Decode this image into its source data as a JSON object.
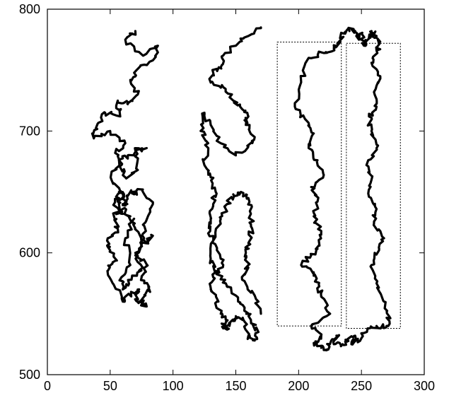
{
  "chart_data": {
    "type": "line",
    "title": "",
    "xlabel": "",
    "ylabel": "",
    "xlim": [
      0,
      300
    ],
    "ylim": [
      500,
      800
    ],
    "xticks": [
      0,
      50,
      100,
      150,
      200,
      250,
      300
    ],
    "yticks": [
      500,
      600,
      700,
      800
    ],
    "xtick_labels": [
      "0",
      "50",
      "100",
      "150",
      "200",
      "250",
      "300"
    ],
    "ytick_labels": [
      "500",
      "600",
      "700",
      "800"
    ],
    "grid": false,
    "legend": "none",
    "series": [
      {
        "x": [
          70,
          62,
          76,
          88,
          84,
          71,
          66,
          72,
          64,
          56,
          58,
          46,
          40,
          37,
          50,
          62,
          54,
          59,
          62,
          72,
          70,
          79,
          64,
          57,
          51,
          58,
          53,
          60,
          56,
          61,
          57,
          63,
          60,
          66,
          69,
          76,
          84,
          78,
          77,
          70,
          79,
          75,
          81,
          78,
          74,
          79,
          73,
          70,
          73,
          62,
          60,
          52,
          48,
          55,
          50,
          48,
          56,
          53,
          60,
          66,
          70,
          79,
          84,
          70,
          76,
          67,
          60,
          59,
          66,
          62,
          69
        ],
        "y": [
          782,
          775,
          762,
          770,
          758,
          750,
          742,
          730,
          722,
          725,
          712,
          715,
          706,
          694,
          700,
          690,
          682,
          672,
          662,
          668,
          684,
          686,
          680,
          676,
          660,
          650,
          640,
          632,
          642,
          648,
          650,
          642,
          640,
          650,
          648,
          652,
          640,
          625,
          612,
          598,
          590,
          580,
          572,
          565,
          560,
          556,
          560,
          562,
          570,
          564,
          560,
          575,
          585,
          594,
          602,
          612,
          620,
          630,
          636,
          630,
          620,
          608,
          614,
          600,
          588,
          578,
          570,
          580,
          590,
          612,
          628
        ]
      },
      {
        "x": [
          170,
          160,
          150,
          140,
          138,
          132,
          130,
          140,
          148,
          155,
          160,
          158,
          165,
          160,
          150,
          138,
          130,
          125,
          122,
          128,
          125,
          130,
          134,
          132,
          130,
          128,
          135,
          140,
          132,
          130,
          135,
          138,
          142,
          140,
          145,
          148,
          150,
          156,
          160,
          165,
          168,
          162,
          157,
          150,
          142,
          135,
          130,
          132,
          138,
          143,
          148,
          154,
          160,
          162,
          163,
          160,
          158,
          160,
          155,
          165,
          170
        ],
        "y": [
          785,
          778,
          770,
          762,
          752,
          748,
          740,
          736,
          725,
          718,
          712,
          705,
          695,
          688,
          680,
          690,
          705,
          715,
          700,
          690,
          672,
          662,
          650,
          640,
          628,
          616,
          604,
          590,
          580,
          570,
          560,
          550,
          545,
          538,
          540,
          544,
          548,
          545,
          532,
          528,
          535,
          545,
          555,
          565,
          575,
          585,
          595,
          610,
          628,
          640,
          648,
          650,
          645,
          632,
          620,
          608,
          600,
          590,
          578,
          565,
          550
        ]
      },
      {
        "x": [
          228,
          220,
          208,
          202,
          197,
          205,
          212,
          208,
          215,
          220,
          210,
          215,
          212,
          218,
          216,
          210,
          202,
          212,
          216,
          218,
          225,
          210,
          218,
          212,
          218,
          222,
          226,
          232,
          228,
          235,
          238,
          245,
          242,
          250,
          255,
          262,
          270,
          272,
          268,
          262,
          258,
          264,
          268,
          260,
          262,
          256,
          258,
          254,
          262,
          258,
          256,
          262,
          260,
          265,
          258,
          262,
          264,
          262,
          258,
          255,
          252,
          250,
          248,
          245,
          240,
          236,
          232,
          228
        ],
        "y": [
          768,
          764,
          760,
          740,
          720,
          710,
          698,
          686,
          676,
          664,
          654,
          642,
          630,
          618,
          606,
          598,
          590,
          584,
          574,
          564,
          550,
          540,
          532,
          526,
          522,
          520,
          528,
          532,
          525,
          525,
          528,
          532,
          525,
          530,
          538,
          540,
          540,
          548,
          560,
          575,
          590,
          602,
          612,
          624,
          636,
          646,
          660,
          672,
          686,
          700,
          712,
          720,
          732,
          745,
          756,
          766,
          772,
          778,
          782,
          775,
          770,
          780,
          775,
          782,
          784,
          780,
          772,
          768
        ]
      }
    ],
    "rectangles": [
      {
        "x0": 183,
        "x1": 234,
        "y0": 540,
        "y1": 773,
        "style": "dotted"
      },
      {
        "x0": 238,
        "x1": 281,
        "y0": 538,
        "y1": 772,
        "style": "dotted"
      }
    ]
  }
}
